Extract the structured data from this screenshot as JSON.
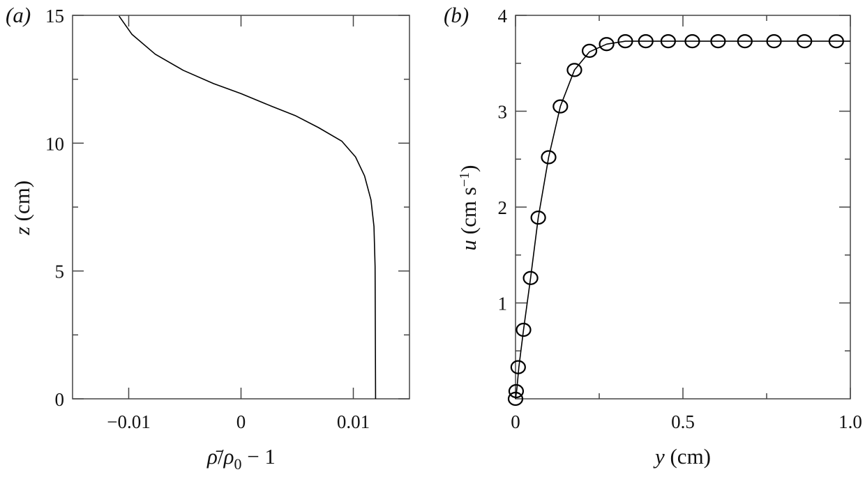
{
  "chart_data": [
    {
      "panel_label": "(a)",
      "type": "line",
      "xlabel": "ρ̄/ρ0 − 1",
      "xlabel_parts": {
        "rho_bar": "ρ̄",
        "slash": "/",
        "rho": "ρ",
        "sub": "0",
        "rest": " − 1"
      },
      "ylabel": "z (cm)",
      "ylabel_parts": {
        "var": "z",
        "unit": " (cm)"
      },
      "xlim": [
        -0.015,
        0.015
      ],
      "ylim": [
        0,
        15
      ],
      "xticks": [
        -0.01,
        0,
        0.01
      ],
      "xtick_labels": [
        "−0.01",
        "0",
        "0.01"
      ],
      "yticks": [
        0,
        5,
        10,
        15
      ],
      "ytick_labels": [
        "0",
        "5",
        "10",
        "15"
      ],
      "yminor": [
        2.5,
        7.5,
        12.5
      ],
      "grid": false,
      "series": [
        {
          "name": "density profile",
          "x": [
            0.01198,
            0.01194,
            0.01184,
            0.01157,
            0.011,
            0.0102,
            0.00897,
            0.0069,
            0.00482,
            0.00274,
            0.0,
            -0.00245,
            -0.00515,
            -0.00764,
            -0.00972,
            -0.01086
          ],
          "y": [
            0,
            5.17,
            6.74,
            7.78,
            8.72,
            9.46,
            10.08,
            10.61,
            11.08,
            11.44,
            11.94,
            12.33,
            12.85,
            13.48,
            14.26,
            14.97
          ]
        }
      ]
    },
    {
      "panel_label": "(b)",
      "type": "line",
      "xlabel": "y (cm)",
      "xlabel_parts": {
        "var": "y",
        "unit": " (cm)"
      },
      "ylabel": "u (cm s−1)",
      "ylabel_parts": {
        "var": "u",
        "unit": " (cm s",
        "sup": "−1",
        "close": ")"
      },
      "xlim": [
        0,
        1.0
      ],
      "ylim": [
        0,
        4
      ],
      "xticks": [
        0,
        0.5,
        1.0
      ],
      "xtick_labels": [
        "0",
        "0.5",
        "1.0"
      ],
      "xminor": [
        0.25,
        0.75
      ],
      "yticks": [
        1,
        2,
        3,
        4
      ],
      "ytick_labels": [
        "1",
        "2",
        "3",
        "4"
      ],
      "yminor": [
        0.5,
        1.5,
        2.5,
        3.5
      ],
      "grid": false,
      "series": [
        {
          "name": "model (line)",
          "x": [
            0.0,
            0.004,
            0.01,
            0.024,
            0.045,
            0.068,
            0.099,
            0.134,
            0.176,
            0.221,
            0.272,
            0.328,
            0.389,
            0.456,
            0.528,
            0.605,
            0.685,
            0.772,
            0.863,
            0.958,
            1.0
          ],
          "y": [
            0.0,
            0.1,
            0.33,
            0.72,
            1.26,
            1.89,
            2.52,
            3.05,
            3.43,
            3.62,
            3.7,
            3.73,
            3.73,
            3.73,
            3.73,
            3.73,
            3.73,
            3.73,
            3.73,
            3.73,
            3.73
          ]
        },
        {
          "name": "data (circles)",
          "x": [
            0.0,
            0.002,
            0.008,
            0.024,
            0.045,
            0.068,
            0.099,
            0.134,
            0.176,
            0.221,
            0.272,
            0.328,
            0.389,
            0.456,
            0.528,
            0.605,
            0.685,
            0.772,
            0.863,
            0.958
          ],
          "y": [
            0.0,
            0.08,
            0.33,
            0.72,
            1.26,
            1.89,
            2.52,
            3.05,
            3.43,
            3.63,
            3.7,
            3.73,
            3.73,
            3.73,
            3.73,
            3.73,
            3.73,
            3.73,
            3.73,
            3.73
          ]
        }
      ]
    }
  ]
}
